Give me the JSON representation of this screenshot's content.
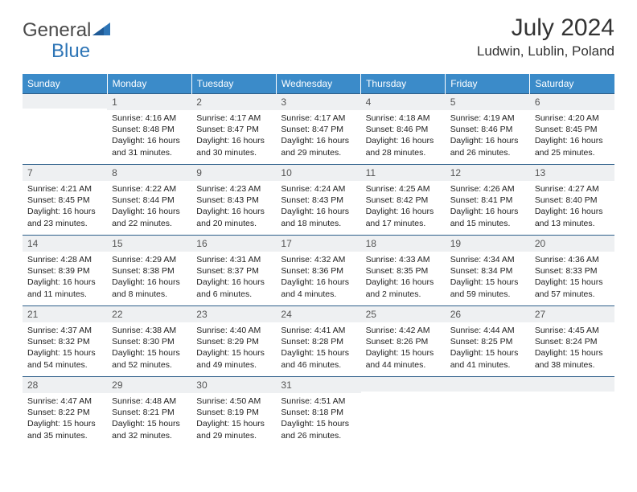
{
  "brand": {
    "part1": "General",
    "part2": "Blue"
  },
  "title": "July 2024",
  "location": "Ludwin, Lublin, Poland",
  "colors": {
    "header_bg": "#3b8bc9",
    "header_text": "#ffffff",
    "day_hdr_bg": "#eef0f2",
    "row_border": "#2e5f8a",
    "brand_blue": "#2e75b6"
  },
  "weekdays": [
    "Sunday",
    "Monday",
    "Tuesday",
    "Wednesday",
    "Thursday",
    "Friday",
    "Saturday"
  ],
  "weeks": [
    [
      {
        "n": "",
        "lines": [
          "",
          "",
          "",
          ""
        ]
      },
      {
        "n": "1",
        "lines": [
          "Sunrise: 4:16 AM",
          "Sunset: 8:48 PM",
          "Daylight: 16 hours",
          "and 31 minutes."
        ]
      },
      {
        "n": "2",
        "lines": [
          "Sunrise: 4:17 AM",
          "Sunset: 8:47 PM",
          "Daylight: 16 hours",
          "and 30 minutes."
        ]
      },
      {
        "n": "3",
        "lines": [
          "Sunrise: 4:17 AM",
          "Sunset: 8:47 PM",
          "Daylight: 16 hours",
          "and 29 minutes."
        ]
      },
      {
        "n": "4",
        "lines": [
          "Sunrise: 4:18 AM",
          "Sunset: 8:46 PM",
          "Daylight: 16 hours",
          "and 28 minutes."
        ]
      },
      {
        "n": "5",
        "lines": [
          "Sunrise: 4:19 AM",
          "Sunset: 8:46 PM",
          "Daylight: 16 hours",
          "and 26 minutes."
        ]
      },
      {
        "n": "6",
        "lines": [
          "Sunrise: 4:20 AM",
          "Sunset: 8:45 PM",
          "Daylight: 16 hours",
          "and 25 minutes."
        ]
      }
    ],
    [
      {
        "n": "7",
        "lines": [
          "Sunrise: 4:21 AM",
          "Sunset: 8:45 PM",
          "Daylight: 16 hours",
          "and 23 minutes."
        ]
      },
      {
        "n": "8",
        "lines": [
          "Sunrise: 4:22 AM",
          "Sunset: 8:44 PM",
          "Daylight: 16 hours",
          "and 22 minutes."
        ]
      },
      {
        "n": "9",
        "lines": [
          "Sunrise: 4:23 AM",
          "Sunset: 8:43 PM",
          "Daylight: 16 hours",
          "and 20 minutes."
        ]
      },
      {
        "n": "10",
        "lines": [
          "Sunrise: 4:24 AM",
          "Sunset: 8:43 PM",
          "Daylight: 16 hours",
          "and 18 minutes."
        ]
      },
      {
        "n": "11",
        "lines": [
          "Sunrise: 4:25 AM",
          "Sunset: 8:42 PM",
          "Daylight: 16 hours",
          "and 17 minutes."
        ]
      },
      {
        "n": "12",
        "lines": [
          "Sunrise: 4:26 AM",
          "Sunset: 8:41 PM",
          "Daylight: 16 hours",
          "and 15 minutes."
        ]
      },
      {
        "n": "13",
        "lines": [
          "Sunrise: 4:27 AM",
          "Sunset: 8:40 PM",
          "Daylight: 16 hours",
          "and 13 minutes."
        ]
      }
    ],
    [
      {
        "n": "14",
        "lines": [
          "Sunrise: 4:28 AM",
          "Sunset: 8:39 PM",
          "Daylight: 16 hours",
          "and 11 minutes."
        ]
      },
      {
        "n": "15",
        "lines": [
          "Sunrise: 4:29 AM",
          "Sunset: 8:38 PM",
          "Daylight: 16 hours",
          "and 8 minutes."
        ]
      },
      {
        "n": "16",
        "lines": [
          "Sunrise: 4:31 AM",
          "Sunset: 8:37 PM",
          "Daylight: 16 hours",
          "and 6 minutes."
        ]
      },
      {
        "n": "17",
        "lines": [
          "Sunrise: 4:32 AM",
          "Sunset: 8:36 PM",
          "Daylight: 16 hours",
          "and 4 minutes."
        ]
      },
      {
        "n": "18",
        "lines": [
          "Sunrise: 4:33 AM",
          "Sunset: 8:35 PM",
          "Daylight: 16 hours",
          "and 2 minutes."
        ]
      },
      {
        "n": "19",
        "lines": [
          "Sunrise: 4:34 AM",
          "Sunset: 8:34 PM",
          "Daylight: 15 hours",
          "and 59 minutes."
        ]
      },
      {
        "n": "20",
        "lines": [
          "Sunrise: 4:36 AM",
          "Sunset: 8:33 PM",
          "Daylight: 15 hours",
          "and 57 minutes."
        ]
      }
    ],
    [
      {
        "n": "21",
        "lines": [
          "Sunrise: 4:37 AM",
          "Sunset: 8:32 PM",
          "Daylight: 15 hours",
          "and 54 minutes."
        ]
      },
      {
        "n": "22",
        "lines": [
          "Sunrise: 4:38 AM",
          "Sunset: 8:30 PM",
          "Daylight: 15 hours",
          "and 52 minutes."
        ]
      },
      {
        "n": "23",
        "lines": [
          "Sunrise: 4:40 AM",
          "Sunset: 8:29 PM",
          "Daylight: 15 hours",
          "and 49 minutes."
        ]
      },
      {
        "n": "24",
        "lines": [
          "Sunrise: 4:41 AM",
          "Sunset: 8:28 PM",
          "Daylight: 15 hours",
          "and 46 minutes."
        ]
      },
      {
        "n": "25",
        "lines": [
          "Sunrise: 4:42 AM",
          "Sunset: 8:26 PM",
          "Daylight: 15 hours",
          "and 44 minutes."
        ]
      },
      {
        "n": "26",
        "lines": [
          "Sunrise: 4:44 AM",
          "Sunset: 8:25 PM",
          "Daylight: 15 hours",
          "and 41 minutes."
        ]
      },
      {
        "n": "27",
        "lines": [
          "Sunrise: 4:45 AM",
          "Sunset: 8:24 PM",
          "Daylight: 15 hours",
          "and 38 minutes."
        ]
      }
    ],
    [
      {
        "n": "28",
        "lines": [
          "Sunrise: 4:47 AM",
          "Sunset: 8:22 PM",
          "Daylight: 15 hours",
          "and 35 minutes."
        ]
      },
      {
        "n": "29",
        "lines": [
          "Sunrise: 4:48 AM",
          "Sunset: 8:21 PM",
          "Daylight: 15 hours",
          "and 32 minutes."
        ]
      },
      {
        "n": "30",
        "lines": [
          "Sunrise: 4:50 AM",
          "Sunset: 8:19 PM",
          "Daylight: 15 hours",
          "and 29 minutes."
        ]
      },
      {
        "n": "31",
        "lines": [
          "Sunrise: 4:51 AM",
          "Sunset: 8:18 PM",
          "Daylight: 15 hours",
          "and 26 minutes."
        ]
      },
      {
        "n": "",
        "lines": [
          "",
          "",
          "",
          ""
        ]
      },
      {
        "n": "",
        "lines": [
          "",
          "",
          "",
          ""
        ]
      },
      {
        "n": "",
        "lines": [
          "",
          "",
          "",
          ""
        ]
      }
    ]
  ]
}
